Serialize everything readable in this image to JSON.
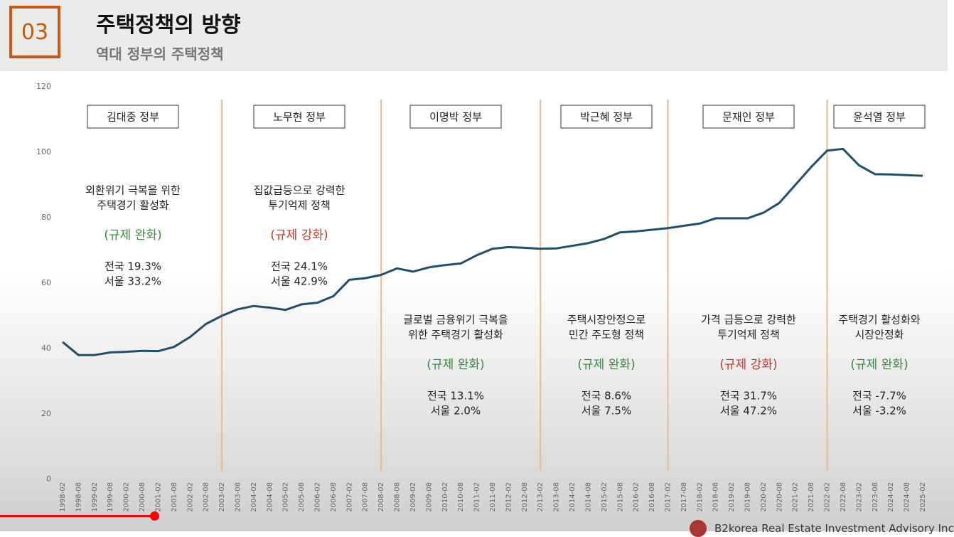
{
  "header": {
    "number": "03",
    "title": "주택정책의 방향",
    "subtitle": "역대 정부의 주택정책"
  },
  "footer": "B2korea Real Estate Investment Advisory Inc",
  "chart_data": {
    "type": "line",
    "categories": [
      "1998-02",
      "1998-08",
      "1999-02",
      "1999-08",
      "2000-02",
      "2000-08",
      "2001-02",
      "2001-08",
      "2002-02",
      "2002-08",
      "2003-02",
      "2003-08",
      "2004-02",
      "2004-08",
      "2005-02",
      "2005-08",
      "2006-02",
      "2006-08",
      "2007-02",
      "2007-08",
      "2008-02",
      "2008-08",
      "2009-02",
      "2009-08",
      "2010-02",
      "2010-08",
      "2011-02",
      "2011-08",
      "2012-02",
      "2012-08",
      "2013-02",
      "2013-08",
      "2014-02",
      "2014-08",
      "2015-02",
      "2015-08",
      "2016-02",
      "2016-08",
      "2017-02",
      "2017-08",
      "2018-02",
      "2018-08",
      "2019-02",
      "2019-08",
      "2020-02",
      "2020-08",
      "2021-02",
      "2021-08",
      "2022-02",
      "2022-08",
      "2023-02",
      "2023-08",
      "2024-02",
      "2024-08",
      "2025-02"
    ],
    "values": [
      42,
      38,
      38,
      38.8,
      39,
      39.3,
      39.2,
      40.5,
      43.5,
      47.5,
      50,
      52,
      53,
      52.5,
      51.8,
      53.5,
      54,
      56,
      61,
      61.5,
      62.5,
      64.5,
      63.5,
      64.8,
      65.5,
      66,
      68.5,
      70.5,
      71,
      70.8,
      70.5,
      70.6,
      71.4,
      72.2,
      73.5,
      75.5,
      75.8,
      76.3,
      76.8,
      77.5,
      78.2,
      79.8,
      79.8,
      79.8,
      81.5,
      84.5,
      90,
      95.5,
      100.5,
      101,
      96,
      93.3,
      93.2,
      93,
      92.8
    ],
    "color": "#1f4f6f",
    "ylim": [
      0,
      120
    ],
    "yticks": [
      0,
      20,
      40,
      60,
      80,
      100,
      120
    ],
    "periods": [
      {
        "name": "김대중  정부",
        "description": [
          "외환위기 극복을 위한",
          "주택경기 활성화"
        ],
        "policy": "(규제 완화)",
        "policy_color": "#3a8a3a",
        "national": "전국 19.3%",
        "seoul": "서울 33.2%"
      },
      {
        "name": "노무현  정부",
        "description": [
          "집값급등으로 강력한",
          "투기억제 정책"
        ],
        "policy": "(규제 강화)",
        "policy_color": "#c0392b",
        "national": "전국 24.1%",
        "seoul": "서울 42.9%"
      },
      {
        "name": "이명박  정부",
        "description": [
          "글로벌 금융위기 극복을",
          "위한 주택경기 활성화"
        ],
        "policy": "(규제 완화)",
        "policy_color": "#3a8a3a",
        "national": "전국 13.1%",
        "seoul": "서울   2.0%"
      },
      {
        "name": "박근혜  정부",
        "description": [
          "주택시장안정으로",
          "민간 주도형 정책"
        ],
        "policy": "(규제 완화)",
        "policy_color": "#3a8a3a",
        "national": "전국 8.6%",
        "seoul": "서울 7.5%"
      },
      {
        "name": "문재인  정부",
        "description": [
          "가격 급등으로 강력한",
          "투기억제 정책"
        ],
        "policy": "(규제 강화)",
        "policy_color": "#c0392b",
        "national": "전국 31.7%",
        "seoul": "서울 47.2%"
      },
      {
        "name": "윤석열  정부",
        "description": [
          "주택경기 활성화와",
          "시장안정화"
        ],
        "policy": "(규제 완화)",
        "policy_color": "#3a8a3a",
        "national": "전국 -7.7%",
        "seoul": "서울 -3.2%"
      }
    ]
  }
}
